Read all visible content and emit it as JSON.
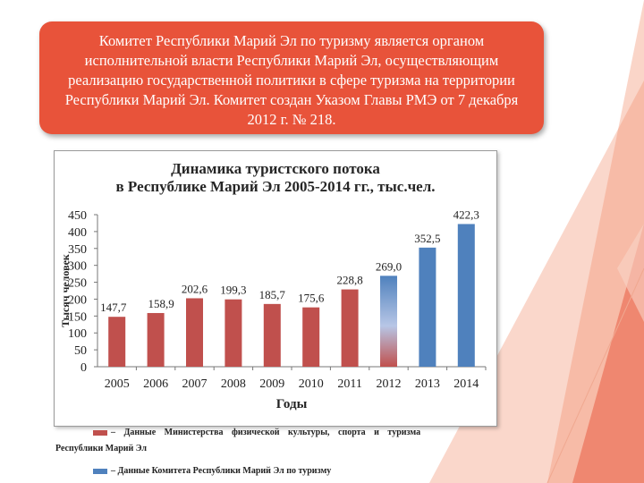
{
  "slide": {
    "callout_text": "Комитет Республики Марий Эл по туризму является органом исполнительной власти Республики Марий Эл, осуществляющим реализацию государственной политики в сфере туризма на территории Республики Марий Эл. Комитет создан Указом Главы РМЭ от 7 декабря 2012 г. № 218."
  },
  "chart_data": {
    "type": "bar",
    "title_line1": "Динамика туристского потока",
    "title_line2": "в Республике Марий Эл 2005-2014 гг., тыс.чел.",
    "xlabel": "Годы",
    "ylabel": "Тысяч человек",
    "ylim": [
      0,
      450
    ],
    "yticks": [
      "0",
      "50",
      "100",
      "150",
      "200",
      "250",
      "300",
      "350",
      "400",
      "450"
    ],
    "categories": [
      "2005",
      "2006",
      "2007",
      "2008",
      "2009",
      "2010",
      "2011",
      "2012",
      "2013",
      "2014"
    ],
    "values": [
      147.7,
      158.9,
      202.6,
      199.3,
      185.7,
      175.6,
      228.8,
      269.0,
      352.5,
      422.3
    ],
    "value_labels": [
      "147,7",
      "158,9",
      "202,6",
      "199,3",
      "185,7",
      "175,6",
      "228,8",
      "269,0",
      "352,5",
      "422,3"
    ],
    "source": [
      "ministry",
      "ministry",
      "ministry",
      "ministry",
      "ministry",
      "ministry",
      "ministry",
      "transition",
      "committee",
      "committee"
    ],
    "colors": {
      "ministry": "#c0504d",
      "committee": "#4f81bd"
    },
    "legend": [
      {
        "key": "ministry",
        "label_line1": "– Данные Министерства физической культуры, спорта и туризма",
        "label_line2": "Республики Марий Эл"
      },
      {
        "key": "committee",
        "label_line1": "– Данные Комитета Республики Марий Эл по туризму"
      }
    ]
  }
}
